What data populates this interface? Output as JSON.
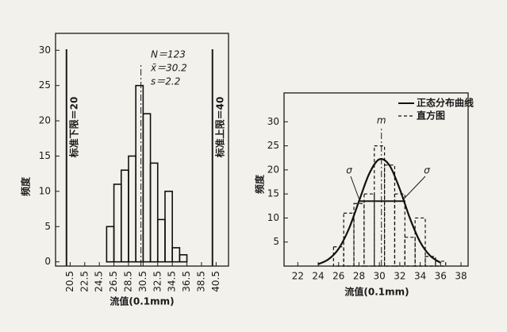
{
  "chart_data": [
    {
      "type": "histogram",
      "ylabel": "频度",
      "xlabel": "流值(0.1mm)",
      "bins": [
        25.5,
        26.5,
        27.5,
        28.5,
        29.5,
        30.5,
        31.5,
        32.5,
        33.5,
        34.5,
        35.5,
        36.5
      ],
      "values": [
        5,
        11,
        13,
        15,
        25,
        21,
        14,
        6,
        10,
        2,
        1
      ],
      "color": "#111111",
      "xlim": [
        18.5,
        42.2
      ],
      "ylim": [
        -0.6,
        32.4
      ],
      "xticks": [
        20.5,
        22.5,
        24.5,
        26.5,
        28.5,
        30.5,
        32.5,
        34.5,
        36.5,
        38.5,
        40.5
      ],
      "yticks": [
        0,
        5,
        10,
        15,
        20,
        25,
        30
      ],
      "limit_lines": [
        {
          "x": 20,
          "label": "标准下限＝20"
        },
        {
          "x": 40,
          "label": "标准上限＝40"
        }
      ],
      "mean_x": 30.2,
      "stats": [
        "N＝123",
        "x̄＝30.2",
        "s＝2.2"
      ]
    },
    {
      "type": "combo",
      "ylabel": "频度",
      "xlabel": "流值(0.1mm)",
      "xlim": [
        20.65,
        38.7
      ],
      "ylim": [
        0,
        36
      ],
      "xticks": [
        22,
        24,
        26,
        28,
        30,
        32,
        34,
        36,
        38
      ],
      "yticks": [
        5,
        10,
        15,
        20,
        25,
        30
      ],
      "series": [
        {
          "name": "正态分布曲线",
          "type": "line",
          "color": "#111111",
          "x": [
            24,
            25,
            26,
            27,
            28,
            29,
            30,
            31,
            32,
            33,
            34,
            35,
            36
          ],
          "values": [
            0.4,
            1.4,
            3.6,
            7.7,
            13.5,
            19.2,
            22.2,
            20.9,
            16.0,
            9.9,
            5.0,
            2.1,
            0.7
          ]
        },
        {
          "name": "直方图",
          "type": "histogram",
          "color": "#111111",
          "bins": [
            25.5,
            26.5,
            27.5,
            28.5,
            29.5,
            30.5,
            31.5,
            32.5,
            33.5,
            34.5,
            35.5,
            36.5
          ],
          "values": [
            4,
            11,
            13,
            15,
            25,
            21,
            15,
            6,
            10,
            2,
            1
          ]
        }
      ],
      "mean_x": 30.2,
      "mean_label": "m",
      "sigma_line": {
        "x": [
          28,
          32.4
        ],
        "y": 13.5,
        "labels": [
          "σ",
          "σ"
        ]
      }
    }
  ]
}
